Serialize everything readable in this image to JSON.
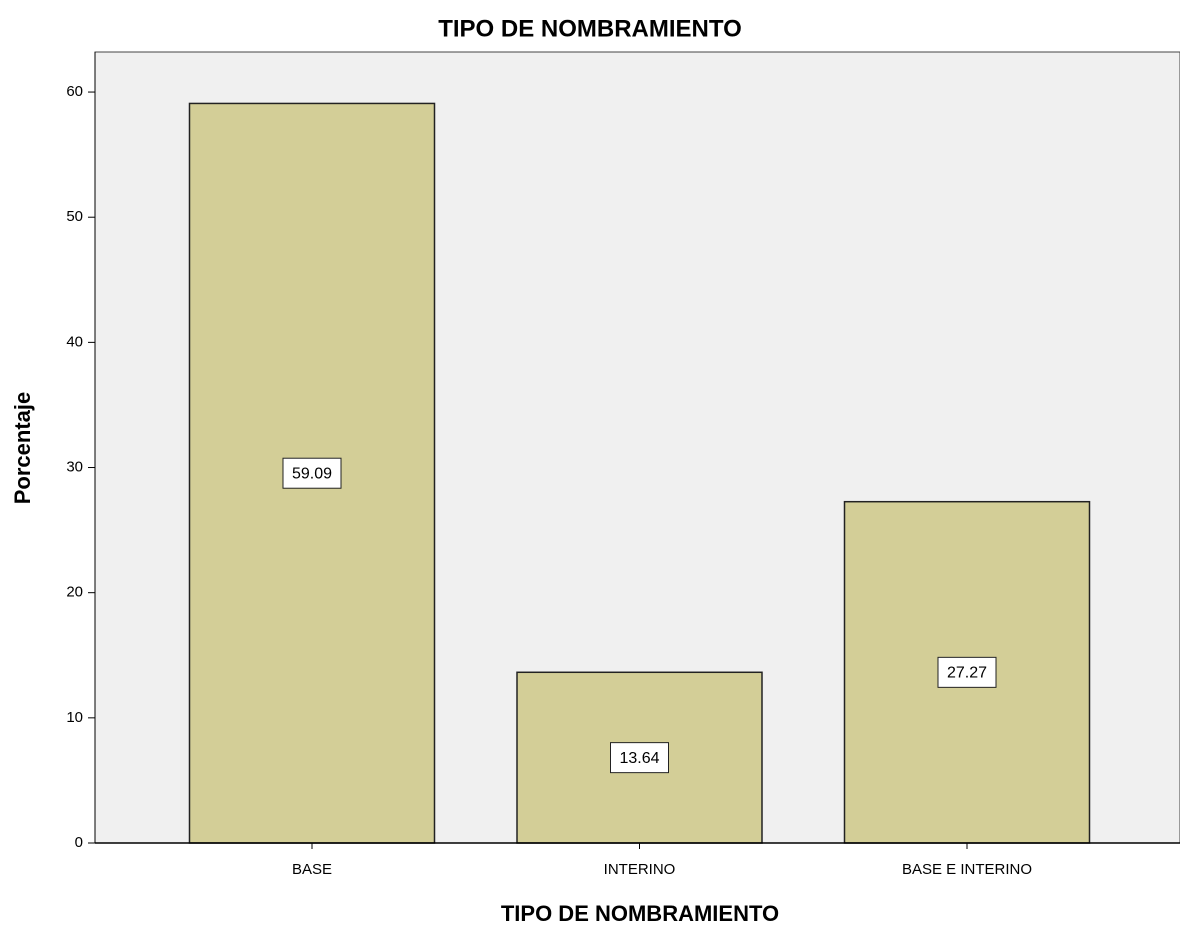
{
  "chart_data": {
    "type": "bar",
    "title": "TIPO DE NOMBRAMIENTO",
    "x_label": "TIPO DE NOMBRAMIENTO",
    "y_label": "Porcentaje",
    "categories": [
      "BASE",
      "INTERINO",
      "BASE E INTERINO"
    ],
    "values": [
      59.09,
      13.64,
      27.27
    ],
    "color": "#d3ce97",
    "ylim": [
      0,
      63.2
    ],
    "yticks": [
      0,
      10,
      20,
      30,
      40,
      50,
      60
    ]
  }
}
